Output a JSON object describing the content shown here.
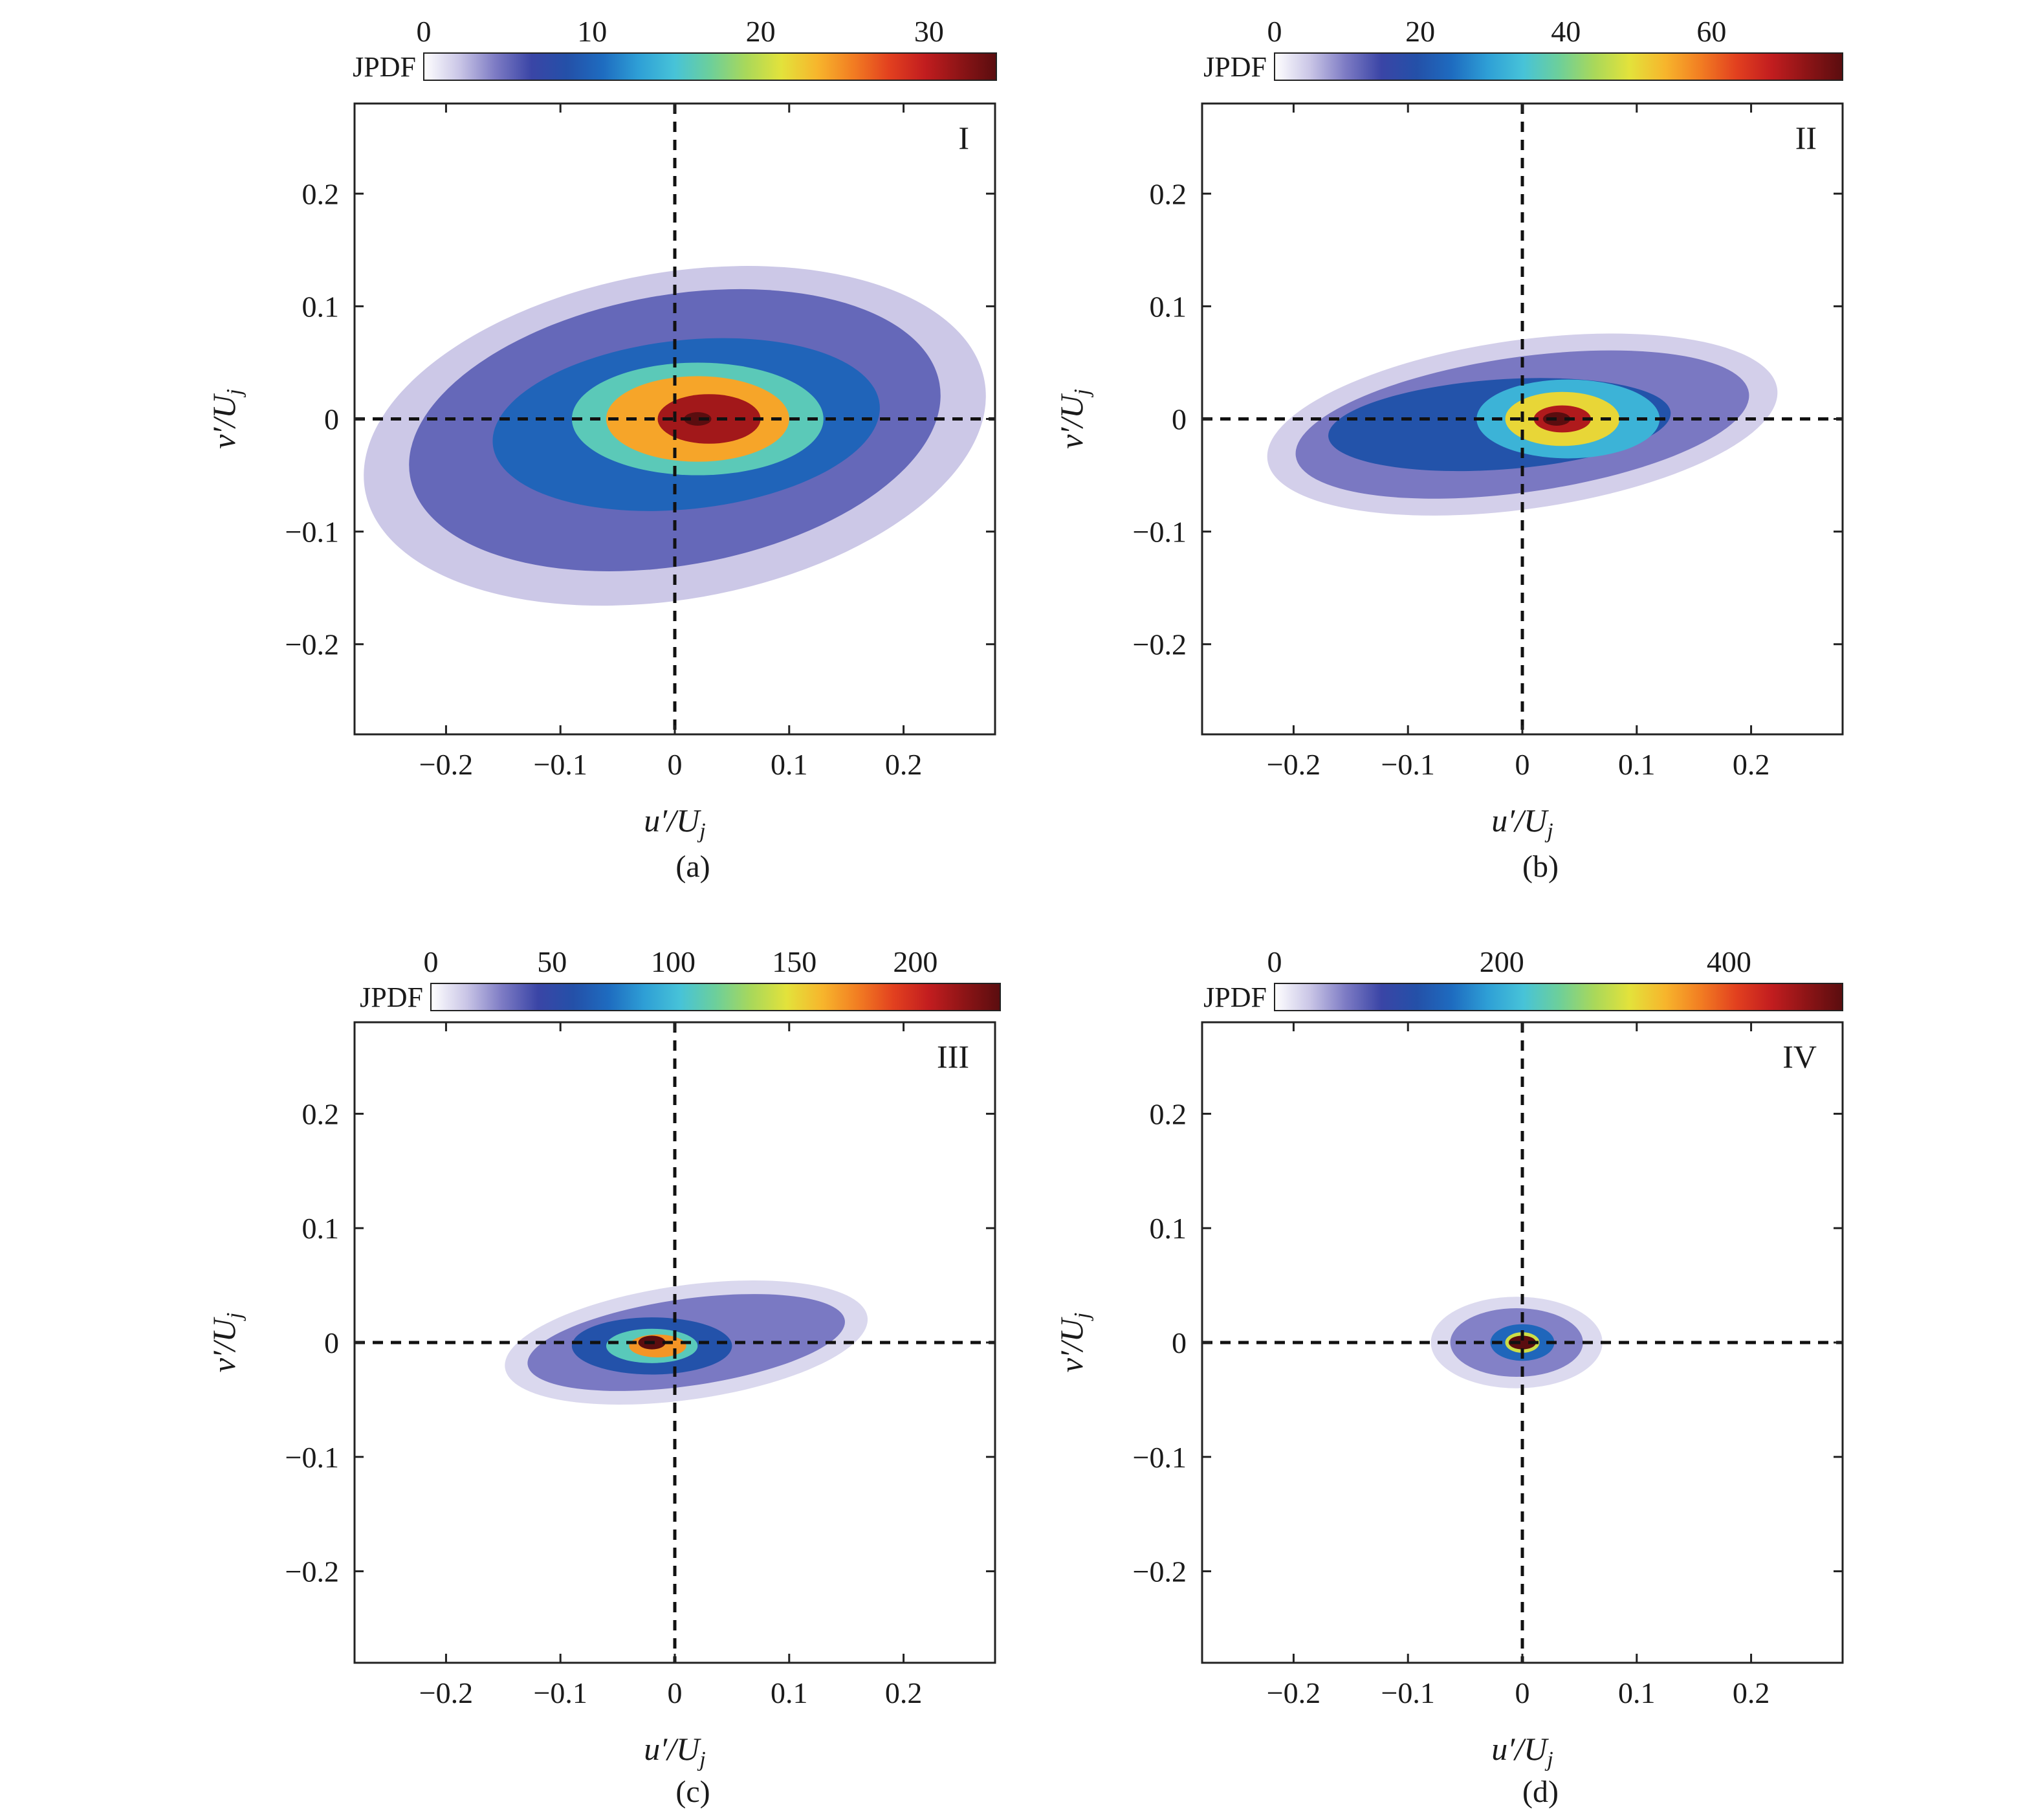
{
  "chart_data": [
    {
      "type": "heatmap",
      "panel": "(a)",
      "region_label": "I",
      "xlabel": "u′/U",
      "xlabel_sub": "j",
      "ylabel": "v′/U",
      "ylabel_sub": "j",
      "xlim": [
        -0.28,
        0.28
      ],
      "ylim": [
        -0.28,
        0.28
      ],
      "xticks": [
        -0.2,
        -0.1,
        0,
        0.1,
        0.2
      ],
      "xtick_labels": [
        "−0.2",
        "−0.1",
        "0",
        "0.1",
        "0.2"
      ],
      "yticks": [
        -0.2,
        -0.1,
        0,
        0.1,
        0.2
      ],
      "ytick_labels": [
        "−0.2",
        "−0.1",
        "0",
        "0.1",
        "0.2"
      ],
      "colorbar": {
        "label": "JPDF",
        "range": [
          0,
          34
        ],
        "ticks": [
          0,
          10,
          20,
          30
        ],
        "tick_labels": [
          "0",
          "10",
          "20",
          "30"
        ]
      },
      "reference_lines": {
        "x": 0,
        "y": 0,
        "style": "dashed"
      },
      "peak": {
        "u": 0.02,
        "v": 0.0,
        "value": 34
      },
      "contour_regions": [
        {
          "level": 2,
          "center": [
            0.0,
            -0.015
          ],
          "semi_axes": [
            0.275,
            0.145
          ],
          "rotation_deg": 10
        },
        {
          "level": 5,
          "center": [
            0.0,
            -0.01
          ],
          "semi_axes": [
            0.235,
            0.12
          ],
          "rotation_deg": 10
        },
        {
          "level": 10,
          "center": [
            0.01,
            -0.005
          ],
          "semi_axes": [
            0.17,
            0.075
          ],
          "rotation_deg": 6
        },
        {
          "level": 16,
          "center": [
            0.02,
            0.0
          ],
          "semi_axes": [
            0.11,
            0.05
          ],
          "rotation_deg": 0
        },
        {
          "level": 24,
          "center": [
            0.02,
            0.0
          ],
          "semi_axes": [
            0.08,
            0.038
          ],
          "rotation_deg": 0
        },
        {
          "level": 31,
          "center": [
            0.03,
            0.0
          ],
          "semi_axes": [
            0.045,
            0.022
          ],
          "rotation_deg": 0
        }
      ]
    },
    {
      "type": "heatmap",
      "panel": "(b)",
      "region_label": "II",
      "xlabel": "u′/U",
      "xlabel_sub": "j",
      "ylabel": "v′/U",
      "ylabel_sub": "j",
      "xlim": [
        -0.28,
        0.28
      ],
      "ylim": [
        -0.28,
        0.28
      ],
      "xticks": [
        -0.2,
        -0.1,
        0,
        0.1,
        0.2
      ],
      "xtick_labels": [
        "−0.2",
        "−0.1",
        "0",
        "0.1",
        "0.2"
      ],
      "yticks": [
        -0.2,
        -0.1,
        0,
        0.1,
        0.2
      ],
      "ytick_labels": [
        "−0.2",
        "−0.1",
        "0",
        "0.1",
        "0.2"
      ],
      "colorbar": {
        "label": "JPDF",
        "range": [
          0,
          78
        ],
        "ticks": [
          0,
          20,
          40,
          60
        ],
        "tick_labels": [
          "0",
          "20",
          "40",
          "60"
        ]
      },
      "reference_lines": {
        "x": 0,
        "y": 0,
        "style": "dashed"
      },
      "peak": {
        "u": 0.03,
        "v": 0.0,
        "value": 78
      },
      "contour_regions": [
        {
          "level": 4,
          "center": [
            0.0,
            -0.005
          ],
          "semi_axes": [
            0.225,
            0.075
          ],
          "rotation_deg": 8
        },
        {
          "level": 10,
          "center": [
            0.0,
            -0.005
          ],
          "semi_axes": [
            0.2,
            0.06
          ],
          "rotation_deg": 8
        },
        {
          "level": 20,
          "center": [
            -0.02,
            -0.005
          ],
          "semi_axes": [
            0.15,
            0.04
          ],
          "rotation_deg": 4
        },
        {
          "level": 32,
          "center": [
            0.04,
            0.0
          ],
          "semi_axes": [
            0.08,
            0.035
          ],
          "rotation_deg": 0
        },
        {
          "level": 50,
          "center": [
            0.035,
            0.0
          ],
          "semi_axes": [
            0.05,
            0.024
          ],
          "rotation_deg": 0
        },
        {
          "level": 70,
          "center": [
            0.035,
            0.0
          ],
          "semi_axes": [
            0.025,
            0.012
          ],
          "rotation_deg": 0
        }
      ]
    },
    {
      "type": "heatmap",
      "panel": "(c)",
      "region_label": "III",
      "xlabel": "u′/U",
      "xlabel_sub": "j",
      "ylabel": "v′/U",
      "ylabel_sub": "j",
      "xlim": [
        -0.28,
        0.28
      ],
      "ylim": [
        -0.28,
        0.28
      ],
      "xticks": [
        -0.2,
        -0.1,
        0,
        0.1,
        0.2
      ],
      "xtick_labels": [
        "−0.2",
        "−0.1",
        "0",
        "0.1",
        "0.2"
      ],
      "yticks": [
        -0.2,
        -0.1,
        0,
        0.1,
        0.2
      ],
      "ytick_labels": [
        "−0.2",
        "−0.1",
        "0",
        "0.1",
        "0.2"
      ],
      "colorbar": {
        "label": "JPDF",
        "range": [
          0,
          235
        ],
        "ticks": [
          0,
          50,
          100,
          150,
          200
        ],
        "tick_labels": [
          "0",
          "50",
          "100",
          "150",
          "200"
        ]
      },
      "reference_lines": {
        "x": 0,
        "y": 0,
        "style": "dashed"
      },
      "peak": {
        "u": -0.02,
        "v": 0.0,
        "value": 235
      },
      "contour_regions": [
        {
          "level": 10,
          "center": [
            0.01,
            0.0
          ],
          "semi_axes": [
            0.16,
            0.05
          ],
          "rotation_deg": 8
        },
        {
          "level": 30,
          "center": [
            0.01,
            0.0
          ],
          "semi_axes": [
            0.14,
            0.038
          ],
          "rotation_deg": 8
        },
        {
          "level": 60,
          "center": [
            -0.02,
            -0.003
          ],
          "semi_axes": [
            0.07,
            0.025
          ],
          "rotation_deg": 0
        },
        {
          "level": 110,
          "center": [
            -0.02,
            -0.003
          ],
          "semi_axes": [
            0.04,
            0.015
          ],
          "rotation_deg": 0
        },
        {
          "level": 170,
          "center": [
            -0.015,
            -0.003
          ],
          "semi_axes": [
            0.025,
            0.01
          ],
          "rotation_deg": 0
        }
      ]
    },
    {
      "type": "heatmap",
      "panel": "(d)",
      "region_label": "IV",
      "xlabel": "u′/U",
      "xlabel_sub": "j",
      "ylabel": "v′/U",
      "ylabel_sub": "j",
      "xlim": [
        -0.28,
        0.28
      ],
      "ylim": [
        -0.28,
        0.28
      ],
      "xticks": [
        -0.2,
        -0.1,
        0,
        0.1,
        0.2
      ],
      "xtick_labels": [
        "−0.2",
        "−0.1",
        "0",
        "0.1",
        "0.2"
      ],
      "yticks": [
        -0.2,
        -0.1,
        0,
        0.1,
        0.2
      ],
      "ytick_labels": [
        "−0.2",
        "−0.1",
        "0",
        "0.1",
        "0.2"
      ],
      "colorbar": {
        "label": "JPDF",
        "range": [
          0,
          500
        ],
        "ticks": [
          0,
          200,
          400
        ],
        "tick_labels": [
          "0",
          "200",
          "400"
        ]
      },
      "reference_lines": {
        "x": 0,
        "y": 0,
        "style": "dashed"
      },
      "peak": {
        "u": 0.0,
        "v": 0.0,
        "value": 500
      },
      "contour_regions": [
        {
          "level": 20,
          "center": [
            -0.005,
            0.0
          ],
          "semi_axes": [
            0.075,
            0.04
          ],
          "rotation_deg": 0
        },
        {
          "level": 60,
          "center": [
            -0.005,
            0.0
          ],
          "semi_axes": [
            0.058,
            0.03
          ],
          "rotation_deg": 0
        },
        {
          "level": 150,
          "center": [
            0.0,
            0.0
          ],
          "semi_axes": [
            0.028,
            0.016
          ],
          "rotation_deg": 0
        },
        {
          "level": 300,
          "center": [
            0.0,
            0.0
          ],
          "semi_axes": [
            0.015,
            0.009
          ],
          "rotation_deg": 0
        },
        {
          "level": 450,
          "center": [
            0.0,
            0.0
          ],
          "semi_axes": [
            0.007,
            0.004
          ],
          "rotation_deg": 0
        }
      ]
    }
  ],
  "colormap": [
    "#ffffff",
    "#c9c5e6",
    "#7d7bc4",
    "#3a45a6",
    "#2450a8",
    "#1e6cc0",
    "#2e9fd6",
    "#47c3d8",
    "#6ccf9b",
    "#a9d85a",
    "#e3e23b",
    "#f7b52c",
    "#f27d22",
    "#e2401f",
    "#c21d1f",
    "#8c1416",
    "#5a0d0f"
  ]
}
